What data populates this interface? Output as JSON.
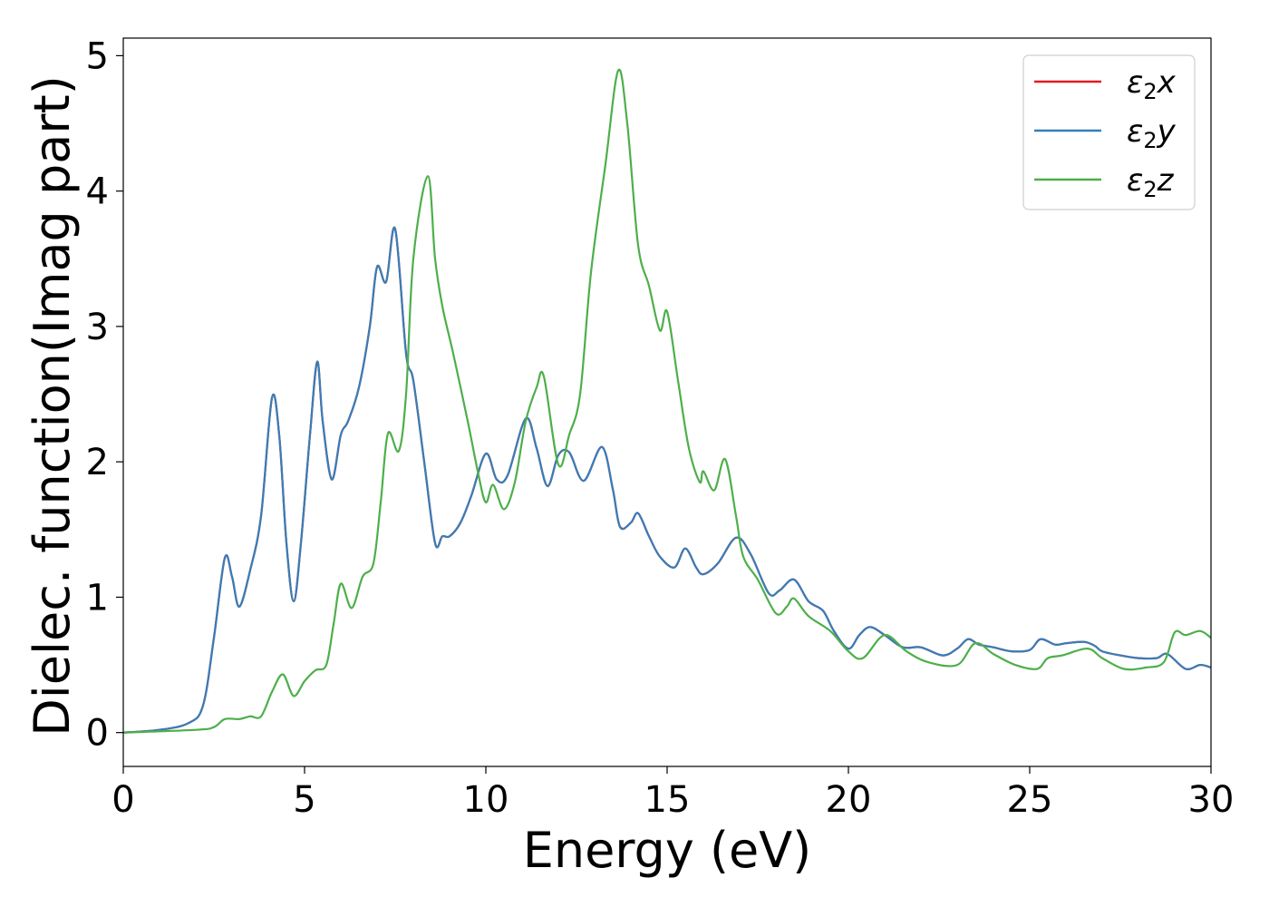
{
  "chart_data": {
    "type": "line",
    "xlabel": "Energy (eV)",
    "ylabel": "Dielec. function(Imag part)",
    "xlim": [
      0,
      30
    ],
    "ylim": [
      -0.25,
      5.13
    ],
    "xticks": [
      0,
      5,
      10,
      15,
      20,
      25,
      30
    ],
    "yticks": [
      0,
      1,
      2,
      3,
      4,
      5
    ],
    "grid": false,
    "legend_position": "top-right",
    "legend": [
      {
        "base": "ε",
        "sub": "2",
        "suffix": "x",
        "color": "#e41a1c"
      },
      {
        "base": "ε",
        "sub": "2",
        "suffix": "y",
        "color": "#377eb8"
      },
      {
        "base": "ε",
        "sub": "2",
        "suffix": "z",
        "color": "#4daf4a"
      }
    ],
    "series": [
      {
        "name": "ε2x",
        "color": "#e41a1c",
        "points": [
          [
            0,
            0
          ],
          [
            1,
            0.02
          ],
          [
            1.8,
            0.07
          ],
          [
            2.2,
            0.2
          ],
          [
            2.5,
            0.7
          ],
          [
            2.8,
            1.29
          ],
          [
            3.0,
            1.15
          ],
          [
            3.2,
            0.93
          ],
          [
            3.5,
            1.2
          ],
          [
            3.8,
            1.6
          ],
          [
            4.1,
            2.47
          ],
          [
            4.3,
            2.2
          ],
          [
            4.5,
            1.4
          ],
          [
            4.7,
            0.97
          ],
          [
            4.9,
            1.4
          ],
          [
            5.15,
            2.2
          ],
          [
            5.35,
            2.74
          ],
          [
            5.5,
            2.3
          ],
          [
            5.75,
            1.87
          ],
          [
            6.0,
            2.2
          ],
          [
            6.2,
            2.3
          ],
          [
            6.5,
            2.55
          ],
          [
            6.8,
            3.0
          ],
          [
            7.0,
            3.44
          ],
          [
            7.25,
            3.33
          ],
          [
            7.5,
            3.72
          ],
          [
            7.8,
            2.8
          ],
          [
            8.0,
            2.6
          ],
          [
            8.3,
            2.0
          ],
          [
            8.6,
            1.4
          ],
          [
            8.8,
            1.45
          ],
          [
            9.0,
            1.45
          ],
          [
            9.3,
            1.55
          ],
          [
            9.6,
            1.75
          ],
          [
            10.0,
            2.06
          ],
          [
            10.3,
            1.87
          ],
          [
            10.6,
            1.9
          ],
          [
            11.1,
            2.32
          ],
          [
            11.4,
            2.1
          ],
          [
            11.7,
            1.82
          ],
          [
            12.0,
            2.05
          ],
          [
            12.3,
            2.07
          ],
          [
            12.7,
            1.86
          ],
          [
            13.2,
            2.11
          ],
          [
            13.5,
            1.8
          ],
          [
            13.7,
            1.52
          ],
          [
            14.0,
            1.55
          ],
          [
            14.2,
            1.62
          ],
          [
            14.5,
            1.45
          ],
          [
            14.8,
            1.3
          ],
          [
            15.2,
            1.22
          ],
          [
            15.5,
            1.36
          ],
          [
            15.8,
            1.22
          ],
          [
            16.0,
            1.17
          ],
          [
            16.4,
            1.25
          ],
          [
            16.9,
            1.44
          ],
          [
            17.3,
            1.32
          ],
          [
            17.8,
            1.03
          ],
          [
            18.1,
            1.05
          ],
          [
            18.5,
            1.13
          ],
          [
            18.9,
            0.97
          ],
          [
            19.3,
            0.9
          ],
          [
            19.6,
            0.75
          ],
          [
            20.0,
            0.62
          ],
          [
            20.3,
            0.72
          ],
          [
            20.6,
            0.78
          ],
          [
            21.0,
            0.72
          ],
          [
            21.5,
            0.63
          ],
          [
            22.0,
            0.63
          ],
          [
            22.6,
            0.57
          ],
          [
            23.0,
            0.62
          ],
          [
            23.3,
            0.69
          ],
          [
            23.6,
            0.65
          ],
          [
            24.0,
            0.63
          ],
          [
            24.5,
            0.6
          ],
          [
            25.0,
            0.61
          ],
          [
            25.3,
            0.69
          ],
          [
            25.7,
            0.65
          ],
          [
            26.0,
            0.66
          ],
          [
            26.5,
            0.67
          ],
          [
            26.8,
            0.64
          ],
          [
            27.0,
            0.6
          ],
          [
            27.5,
            0.57
          ],
          [
            28.0,
            0.55
          ],
          [
            28.5,
            0.55
          ],
          [
            28.8,
            0.58
          ],
          [
            29.3,
            0.47
          ],
          [
            29.7,
            0.5
          ],
          [
            30.0,
            0.48
          ]
        ]
      },
      {
        "name": "ε2y",
        "color": "#377eb8",
        "points": [
          [
            0,
            0
          ],
          [
            1,
            0.02
          ],
          [
            1.8,
            0.07
          ],
          [
            2.2,
            0.2
          ],
          [
            2.5,
            0.7
          ],
          [
            2.8,
            1.29
          ],
          [
            3.0,
            1.15
          ],
          [
            3.2,
            0.93
          ],
          [
            3.5,
            1.2
          ],
          [
            3.8,
            1.6
          ],
          [
            4.1,
            2.47
          ],
          [
            4.3,
            2.2
          ],
          [
            4.5,
            1.4
          ],
          [
            4.7,
            0.97
          ],
          [
            4.9,
            1.4
          ],
          [
            5.15,
            2.2
          ],
          [
            5.35,
            2.74
          ],
          [
            5.5,
            2.3
          ],
          [
            5.75,
            1.87
          ],
          [
            6.0,
            2.2
          ],
          [
            6.2,
            2.3
          ],
          [
            6.5,
            2.55
          ],
          [
            6.8,
            3.0
          ],
          [
            7.0,
            3.44
          ],
          [
            7.25,
            3.33
          ],
          [
            7.5,
            3.72
          ],
          [
            7.8,
            2.8
          ],
          [
            8.0,
            2.6
          ],
          [
            8.3,
            2.0
          ],
          [
            8.6,
            1.4
          ],
          [
            8.8,
            1.45
          ],
          [
            9.0,
            1.45
          ],
          [
            9.3,
            1.55
          ],
          [
            9.6,
            1.75
          ],
          [
            10.0,
            2.06
          ],
          [
            10.3,
            1.87
          ],
          [
            10.6,
            1.9
          ],
          [
            11.1,
            2.32
          ],
          [
            11.4,
            2.1
          ],
          [
            11.7,
            1.82
          ],
          [
            12.0,
            2.05
          ],
          [
            12.3,
            2.07
          ],
          [
            12.7,
            1.86
          ],
          [
            13.2,
            2.11
          ],
          [
            13.5,
            1.8
          ],
          [
            13.7,
            1.52
          ],
          [
            14.0,
            1.55
          ],
          [
            14.2,
            1.62
          ],
          [
            14.5,
            1.45
          ],
          [
            14.8,
            1.3
          ],
          [
            15.2,
            1.22
          ],
          [
            15.5,
            1.36
          ],
          [
            15.8,
            1.22
          ],
          [
            16.0,
            1.17
          ],
          [
            16.4,
            1.25
          ],
          [
            16.9,
            1.44
          ],
          [
            17.3,
            1.32
          ],
          [
            17.8,
            1.03
          ],
          [
            18.1,
            1.05
          ],
          [
            18.5,
            1.13
          ],
          [
            18.9,
            0.97
          ],
          [
            19.3,
            0.9
          ],
          [
            19.6,
            0.75
          ],
          [
            20.0,
            0.62
          ],
          [
            20.3,
            0.72
          ],
          [
            20.6,
            0.78
          ],
          [
            21.0,
            0.72
          ],
          [
            21.5,
            0.63
          ],
          [
            22.0,
            0.63
          ],
          [
            22.6,
            0.57
          ],
          [
            23.0,
            0.62
          ],
          [
            23.3,
            0.69
          ],
          [
            23.6,
            0.65
          ],
          [
            24.0,
            0.63
          ],
          [
            24.5,
            0.6
          ],
          [
            25.0,
            0.61
          ],
          [
            25.3,
            0.69
          ],
          [
            25.7,
            0.65
          ],
          [
            26.0,
            0.66
          ],
          [
            26.5,
            0.67
          ],
          [
            26.8,
            0.64
          ],
          [
            27.0,
            0.6
          ],
          [
            27.5,
            0.57
          ],
          [
            28.0,
            0.55
          ],
          [
            28.5,
            0.55
          ],
          [
            28.8,
            0.58
          ],
          [
            29.3,
            0.47
          ],
          [
            29.7,
            0.5
          ],
          [
            30.0,
            0.48
          ]
        ]
      },
      {
        "name": "ε2z",
        "color": "#4daf4a",
        "points": [
          [
            0,
            0
          ],
          [
            2.0,
            0.02
          ],
          [
            2.5,
            0.04
          ],
          [
            2.8,
            0.1
          ],
          [
            3.2,
            0.1
          ],
          [
            3.5,
            0.12
          ],
          [
            3.8,
            0.12
          ],
          [
            4.1,
            0.3
          ],
          [
            4.4,
            0.43
          ],
          [
            4.7,
            0.27
          ],
          [
            5.0,
            0.38
          ],
          [
            5.3,
            0.46
          ],
          [
            5.6,
            0.5
          ],
          [
            5.8,
            0.8
          ],
          [
            6.0,
            1.1
          ],
          [
            6.3,
            0.92
          ],
          [
            6.6,
            1.15
          ],
          [
            6.9,
            1.25
          ],
          [
            7.1,
            1.7
          ],
          [
            7.3,
            2.21
          ],
          [
            7.6,
            2.08
          ],
          [
            7.8,
            2.5
          ],
          [
            8.0,
            3.5
          ],
          [
            8.4,
            4.11
          ],
          [
            8.6,
            3.5
          ],
          [
            8.8,
            3.15
          ],
          [
            9.1,
            2.8
          ],
          [
            9.5,
            2.3
          ],
          [
            9.8,
            1.9
          ],
          [
            10.0,
            1.7
          ],
          [
            10.2,
            1.83
          ],
          [
            10.5,
            1.65
          ],
          [
            10.8,
            1.85
          ],
          [
            11.1,
            2.3
          ],
          [
            11.4,
            2.55
          ],
          [
            11.6,
            2.63
          ],
          [
            12.0,
            1.98
          ],
          [
            12.3,
            2.2
          ],
          [
            12.6,
            2.5
          ],
          [
            12.9,
            3.4
          ],
          [
            13.3,
            4.2
          ],
          [
            13.65,
            4.89
          ],
          [
            13.9,
            4.5
          ],
          [
            14.2,
            3.6
          ],
          [
            14.5,
            3.3
          ],
          [
            14.8,
            2.97
          ],
          [
            15.0,
            3.11
          ],
          [
            15.3,
            2.6
          ],
          [
            15.6,
            2.1
          ],
          [
            15.9,
            1.85
          ],
          [
            16.0,
            1.93
          ],
          [
            16.3,
            1.79
          ],
          [
            16.6,
            2.02
          ],
          [
            16.9,
            1.6
          ],
          [
            17.1,
            1.3
          ],
          [
            17.5,
            1.13
          ],
          [
            18.0,
            0.88
          ],
          [
            18.3,
            0.93
          ],
          [
            18.5,
            0.99
          ],
          [
            18.9,
            0.86
          ],
          [
            19.5,
            0.75
          ],
          [
            20.0,
            0.6
          ],
          [
            20.4,
            0.55
          ],
          [
            21.0,
            0.72
          ],
          [
            21.6,
            0.6
          ],
          [
            22.2,
            0.52
          ],
          [
            23.0,
            0.5
          ],
          [
            23.5,
            0.66
          ],
          [
            24.0,
            0.58
          ],
          [
            24.6,
            0.5
          ],
          [
            25.2,
            0.47
          ],
          [
            25.5,
            0.55
          ],
          [
            25.9,
            0.57
          ],
          [
            26.6,
            0.62
          ],
          [
            27.0,
            0.55
          ],
          [
            27.6,
            0.47
          ],
          [
            28.2,
            0.48
          ],
          [
            28.7,
            0.52
          ],
          [
            29.0,
            0.74
          ],
          [
            29.3,
            0.72
          ],
          [
            29.7,
            0.75
          ],
          [
            30.0,
            0.7
          ]
        ]
      }
    ]
  }
}
